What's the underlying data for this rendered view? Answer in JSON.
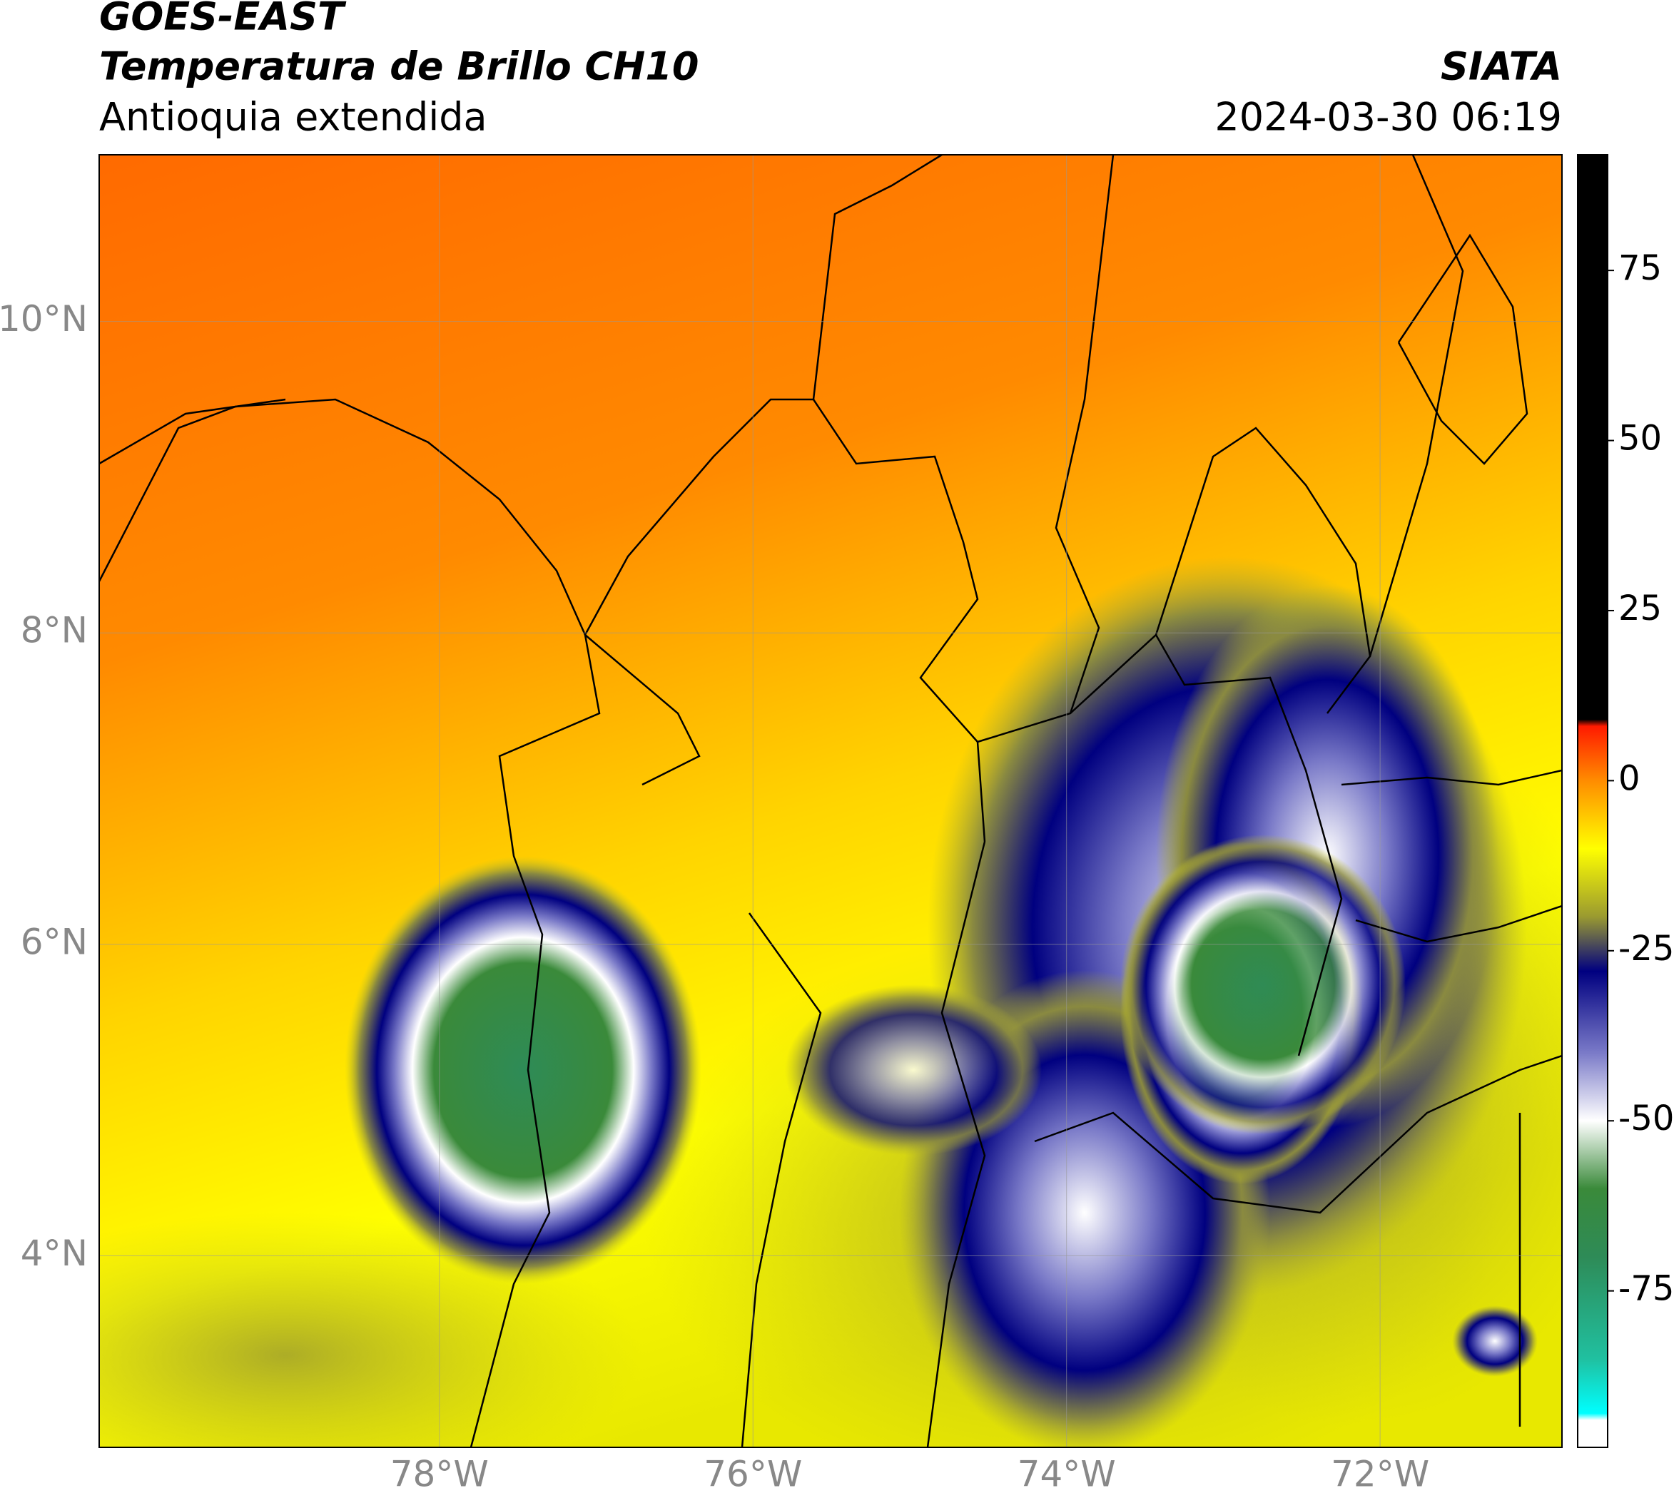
{
  "header": {
    "satellite": "GOES-EAST",
    "product": "Temperatura de Brillo CH10",
    "region": "Antioquia extendida",
    "source": "SIATA",
    "datetime": "2024-03-30 06:19"
  },
  "map": {
    "xlim": [
      -80.17,
      -70.84
    ],
    "ylim": [
      2.77,
      11.07
    ],
    "xticks": [
      {
        "value": -78,
        "label": "78°W"
      },
      {
        "value": -76,
        "label": "76°W"
      },
      {
        "value": -74,
        "label": "74°W"
      },
      {
        "value": -72,
        "label": "72°W"
      }
    ],
    "yticks": [
      {
        "value": 4,
        "label": "4°N"
      },
      {
        "value": 6,
        "label": "6°N"
      },
      {
        "value": 8,
        "label": "8°N"
      },
      {
        "value": 10,
        "label": "10°N"
      }
    ],
    "grid": true
  },
  "colorbar": {
    "lim": [
      -98,
      92
    ],
    "ticks": [
      -75,
      -50,
      -25,
      0,
      25,
      50,
      75
    ],
    "colors": [
      {
        "value": 92,
        "color": "#000000"
      },
      {
        "value": 9,
        "color": "#000000"
      },
      {
        "value": 8,
        "color": "#ff1a00"
      },
      {
        "value": 0,
        "color": "#ff8c00"
      },
      {
        "value": -10,
        "color": "#ffff00"
      },
      {
        "value": -20,
        "color": "#9a9a30"
      },
      {
        "value": -28,
        "color": "#000080"
      },
      {
        "value": -40,
        "color": "#7a7ac8"
      },
      {
        "value": -50,
        "color": "#ffffff"
      },
      {
        "value": -60,
        "color": "#3a8a3a"
      },
      {
        "value": -70,
        "color": "#2e8b57"
      },
      {
        "value": -85,
        "color": "#20c0a0"
      },
      {
        "value": -93,
        "color": "#00ffff"
      },
      {
        "value": -94,
        "color": "#ffffff"
      },
      {
        "value": -98,
        "color": "#ffffff"
      }
    ]
  }
}
